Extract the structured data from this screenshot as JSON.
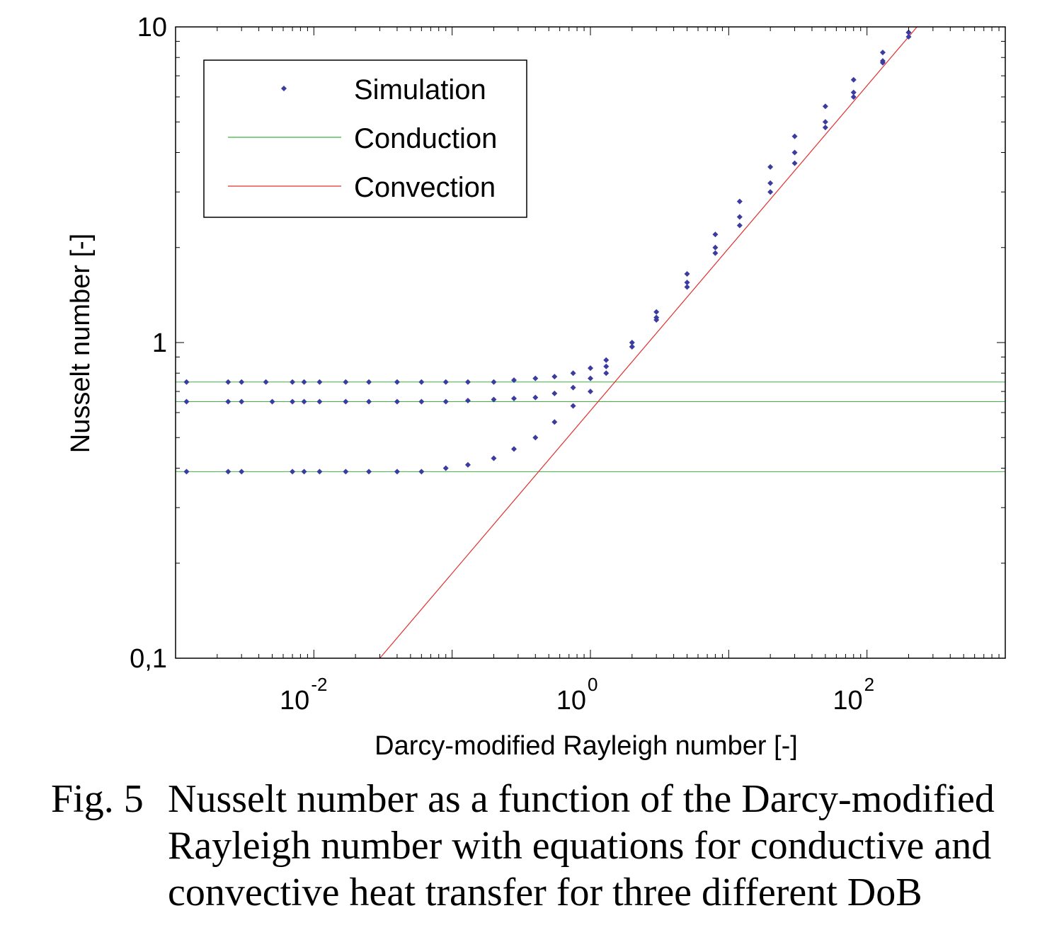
{
  "caption": {
    "label": "Fig. 5",
    "text": "Nusselt number as a function of the Darcy-modified Rayleigh number with equations for conductive and convective heat transfer for three different DoB"
  },
  "chart_data": {
    "type": "scatter",
    "xlabel": "Darcy-modified Rayleigh number [-]",
    "ylabel": "Nusselt number [-]",
    "xscale": "log",
    "yscale": "log",
    "xlim": [
      0.001,
      1000
    ],
    "ylim": [
      0.1,
      10
    ],
    "x_ticks": [
      {
        "value": 0.01,
        "base": "10",
        "exp": "-2"
      },
      {
        "value": 1,
        "base": "10",
        "exp": "0"
      },
      {
        "value": 100,
        "base": "10",
        "exp": "2"
      }
    ],
    "y_ticks": [
      {
        "value": 0.1,
        "label": "0,1"
      },
      {
        "value": 1,
        "label": "1"
      },
      {
        "value": 10,
        "label": "10"
      }
    ],
    "grid": false,
    "legend_position": "top-left",
    "legend": [
      {
        "label": "Simulation",
        "style": "marker",
        "color": "#3c3ca0"
      },
      {
        "label": "Conduction",
        "style": "line",
        "color": "#3cb43c"
      },
      {
        "label": "Convection",
        "style": "line",
        "color": "#e03030"
      }
    ],
    "conduction_levels": [
      0.75,
      0.65,
      0.39
    ],
    "convection_line": {
      "x": [
        0.03,
        230
      ],
      "y": [
        0.1,
        10
      ],
      "law": "Nu = 0.68 * Ra^0.5"
    },
    "series": [
      {
        "x": [
          0.0012,
          0.0024,
          0.003,
          0.0045,
          0.007,
          0.0085,
          0.011,
          0.017,
          0.025,
          0.04,
          0.06,
          0.09,
          0.13,
          0.2,
          0.28,
          0.4,
          0.55,
          0.75,
          1.0,
          1.3,
          2.0,
          3.0,
          5.0,
          8.0,
          12,
          20,
          30,
          50,
          80,
          130,
          200
        ],
        "y": [
          0.75,
          0.75,
          0.75,
          0.75,
          0.75,
          0.75,
          0.75,
          0.75,
          0.75,
          0.75,
          0.75,
          0.75,
          0.75,
          0.75,
          0.76,
          0.77,
          0.78,
          0.8,
          0.83,
          0.88,
          1.0,
          1.25,
          1.65,
          2.2,
          2.8,
          3.6,
          4.5,
          5.6,
          6.8,
          8.3,
          9.6
        ]
      },
      {
        "x": [
          0.0012,
          0.0024,
          0.003,
          0.005,
          0.007,
          0.0085,
          0.011,
          0.017,
          0.025,
          0.04,
          0.06,
          0.09,
          0.13,
          0.2,
          0.28,
          0.4,
          0.55,
          0.75,
          1.0,
          1.3,
          2.0,
          3.0,
          5.0,
          8.0,
          12,
          20,
          30,
          50,
          80,
          130,
          200
        ],
        "y": [
          0.65,
          0.65,
          0.65,
          0.65,
          0.65,
          0.65,
          0.65,
          0.65,
          0.65,
          0.65,
          0.65,
          0.65,
          0.655,
          0.66,
          0.665,
          0.67,
          0.69,
          0.72,
          0.77,
          0.84,
          0.97,
          1.2,
          1.55,
          2.0,
          2.5,
          3.2,
          4.0,
          5.0,
          6.2,
          7.8,
          9.3
        ]
      },
      {
        "x": [
          0.0012,
          0.0024,
          0.003,
          0.007,
          0.0085,
          0.011,
          0.017,
          0.025,
          0.04,
          0.06,
          0.09,
          0.13,
          0.2,
          0.28,
          0.4,
          0.55,
          0.75,
          1.0,
          1.3,
          2.0,
          3.0,
          5.0,
          8.0,
          12,
          20,
          30,
          50,
          80,
          130,
          200
        ],
        "y": [
          0.39,
          0.39,
          0.39,
          0.39,
          0.39,
          0.39,
          0.39,
          0.39,
          0.39,
          0.39,
          0.4,
          0.41,
          0.43,
          0.46,
          0.5,
          0.56,
          0.63,
          0.7,
          0.8,
          0.97,
          1.18,
          1.5,
          1.92,
          2.35,
          3.0,
          3.7,
          4.8,
          6.0,
          7.7,
          9.6
        ]
      }
    ]
  }
}
